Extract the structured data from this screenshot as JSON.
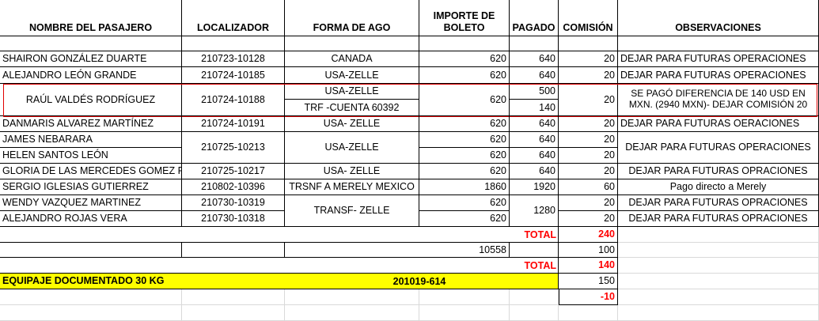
{
  "headers": {
    "passenger": "NOMBRE DEL PASAJERO",
    "locator": "LOCALIZADOR",
    "payment_method": "FORMA DE AGO",
    "ticket_amount": "IMPORTE DE BOLETO",
    "paid": "PAGADO",
    "commission": "COMISIÓN",
    "notes": "OBSERVACIONES"
  },
  "rows": [
    {
      "passenger": "SHAIRON GONZÁLEZ DUARTE",
      "locator": "210723-10128",
      "method": "CANADA",
      "amount": "620",
      "paid": "640",
      "commission": "20",
      "notes": "DEJAR PARA FUTURAS OPERACIONES"
    },
    {
      "passenger": "ALEJANDRO LEÓN GRANDE",
      "locator": "210724-10185",
      "method": "USA-ZELLE",
      "amount": "620",
      "paid": "640",
      "commission": "20",
      "notes": "DEJAR PARA FUTURAS OPERACIONES"
    },
    {
      "passenger": "RAÚL VALDÉS RODRÍGUEZ",
      "locator": "210724-10188",
      "method": "USA-ZELLE",
      "method2": "TRF -CUENTA 60392",
      "amount": "620",
      "paid": "500",
      "paid2": "140",
      "commission": "20",
      "notes": "SE PAGÓ DIFERENCIA DE 140 USD EN MXN. (2940 MXN)- DEJAR COMISIÓN 20"
    },
    {
      "passenger": "DANMARIS ALVAREZ MARTÍNEZ",
      "locator": "210724-10191",
      "method": "USA- ZELLE",
      "amount": "620",
      "paid": "640",
      "commission": "20",
      "notes": "DEJAR PARA FUTURAS OERACIONES"
    },
    {
      "passenger": "JAMES NEBARARA",
      "passenger2": "HELEN SANTOS LEÓN",
      "locator": "210725-10213",
      "method": "USA-ZELLE",
      "amount": "620",
      "amount2": "620",
      "paid": "640",
      "paid2": "640",
      "commission": "20",
      "commission2": "20",
      "notes": "DEJAR PARA FUTURAS OPERACIONES"
    },
    {
      "passenger": "GLORIA DE LAS MERCEDES GOMEZ PA",
      "locator": "210725-10217",
      "method": "USA- ZELLE",
      "amount": "620",
      "paid": "640",
      "commission": "20",
      "notes": "DEJAR PARA FUTURAS OPRACIONES"
    },
    {
      "passenger": "SERGIO IGLESIAS GUTIERREZ",
      "locator": "210802-10396",
      "method": "TRSNF A MERELY MEXICO",
      "amount": "1860",
      "paid": "1920",
      "commission": "60",
      "notes": "Pago directo a Merely"
    },
    {
      "passenger": "WENDY VAZQUEZ MARTINEZ",
      "passenger2": "ALEJANDRO ROJAS VERA",
      "locator": "210730-10319",
      "locator2": "210730-10318",
      "method": "TRANSF- ZELLE",
      "amount": "620",
      "amount2": "620",
      "paid": "1280",
      "commission": "20",
      "commission2": "20",
      "notes": "DEJAR PARA FUTURAS OPRACIONES",
      "notes2": "DEJAR PARA FUTURAS OPRACIONES"
    }
  ],
  "totals": {
    "total_label": "TOTAL",
    "total_commission": "240",
    "sum_amount": "10558",
    "minus_value": "100",
    "total_label2": "TOTAL",
    "total2": "140",
    "baggage_label": "EQUIPAJE DOCUMENTADO 30 KG",
    "baggage_locator": "201019-614",
    "baggage_value": "150",
    "difference": "-10"
  },
  "colors": {
    "highlight": "#ffff00",
    "alert": "#ff0000",
    "box": "#e00000"
  }
}
